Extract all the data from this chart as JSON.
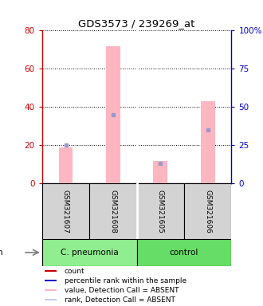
{
  "title": "GDS3573 / 239269_at",
  "samples": [
    "GSM321607",
    "GSM321608",
    "GSM321605",
    "GSM321606"
  ],
  "pink_bar_values": [
    19,
    72,
    12,
    43
  ],
  "blue_square_values": [
    25,
    45,
    13,
    35
  ],
  "ylim_left": [
    0,
    80
  ],
  "ylim_right": [
    0,
    100
  ],
  "yticks_left": [
    0,
    20,
    40,
    60,
    80
  ],
  "yticks_right": [
    0,
    25,
    50,
    75,
    100
  ],
  "left_axis_color": "#cc0000",
  "right_axis_color": "#0000cc",
  "pink_bar_color": "#ffb6c1",
  "blue_square_color": "#9999cc",
  "cpneumonia_color": "#90ee90",
  "control_color": "#66dd66",
  "sample_box_color": "#d3d3d3",
  "legend_items": [
    {
      "label": "count",
      "color": "#cc0000"
    },
    {
      "label": "percentile rank within the sample",
      "color": "#0000cc"
    },
    {
      "label": "value, Detection Call = ABSENT",
      "color": "#ffb6c1"
    },
    {
      "label": "rank, Detection Call = ABSENT",
      "color": "#c8c8ff"
    }
  ]
}
